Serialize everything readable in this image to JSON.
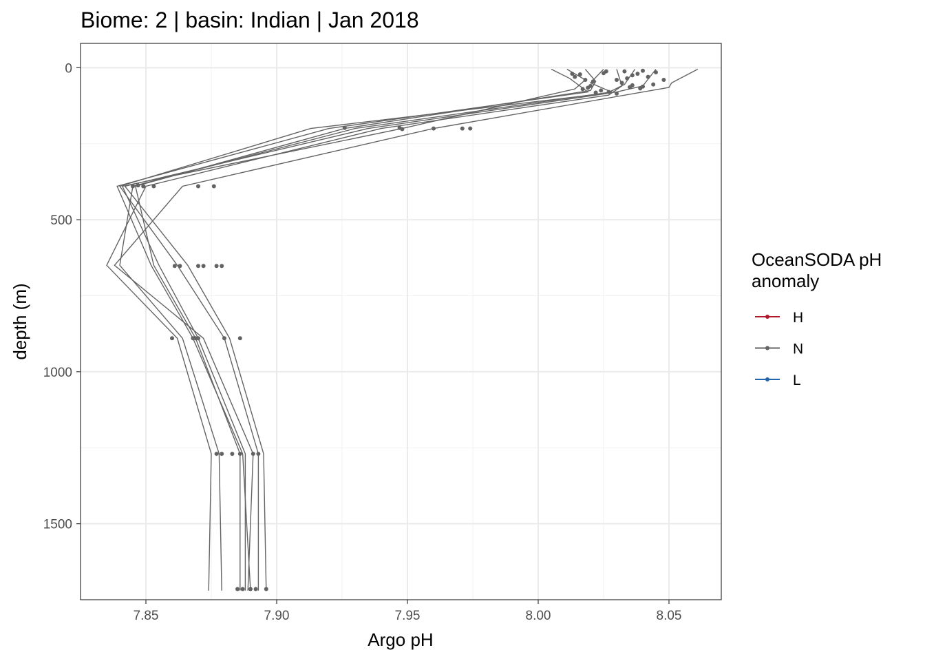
{
  "chart_data": {
    "type": "line",
    "title": "Biome: 2 | basin: Indian  | Jan 2018",
    "xlabel": "Argo pH",
    "ylabel": "depth (m)",
    "xlim": [
      7.825,
      8.07
    ],
    "ylim": [
      1750,
      -80
    ],
    "y_reversed": true,
    "xticks": [
      7.85,
      7.9,
      7.95,
      8.0,
      8.05
    ],
    "xtick_labels": [
      "7.85",
      "7.90",
      "7.95",
      "8.00",
      "8.05"
    ],
    "yticks": [
      0,
      500,
      1000,
      1500
    ],
    "ytick_labels": [
      "0",
      "500",
      "1000",
      "1500"
    ],
    "grid": true,
    "legend": {
      "title": "OceanSODA pH anomaly",
      "title_lines": [
        "OceanSODA pH",
        "anomaly"
      ],
      "placement": "right",
      "entries": [
        {
          "label": "H",
          "color": "#b2182b"
        },
        {
          "label": "N",
          "color": "#636363"
        },
        {
          "label": "L",
          "color": "#2166ac"
        }
      ]
    },
    "series": [
      {
        "group": "N",
        "points": [
          [
            8.061,
            5
          ],
          [
            8.051,
            50
          ],
          [
            8.05,
            65
          ],
          [
            7.96,
            200
          ],
          [
            7.864,
            390
          ],
          [
            7.838,
            650
          ],
          [
            7.872,
            890
          ],
          [
            7.891,
            1270
          ],
          [
            7.889,
            1720
          ]
        ]
      },
      {
        "group": "N",
        "points": [
          [
            8.045,
            5
          ],
          [
            8.04,
            60
          ],
          [
            8.03,
            80
          ],
          [
            7.913,
            200
          ],
          [
            7.84,
            390
          ],
          [
            7.862,
            650
          ],
          [
            7.88,
            890
          ],
          [
            7.893,
            1270
          ],
          [
            7.893,
            1720
          ]
        ]
      },
      {
        "group": "N",
        "points": [
          [
            8.037,
            5
          ],
          [
            8.033,
            55
          ],
          [
            8.026,
            85
          ],
          [
            7.935,
            200
          ],
          [
            7.842,
            390
          ],
          [
            7.866,
            650
          ],
          [
            7.882,
            890
          ],
          [
            7.895,
            1270
          ],
          [
            7.896,
            1720
          ]
        ]
      },
      {
        "group": "N",
        "points": [
          [
            8.03,
            5
          ],
          [
            8.032,
            60
          ],
          [
            8.027,
            90
          ],
          [
            7.94,
            200
          ],
          [
            7.85,
            390
          ],
          [
            7.835,
            650
          ],
          [
            7.862,
            890
          ],
          [
            7.875,
            1270
          ],
          [
            7.874,
            1720
          ]
        ]
      },
      {
        "group": "N",
        "points": [
          [
            8.025,
            5
          ],
          [
            8.02,
            50
          ],
          [
            8.028,
            80
          ],
          [
            7.93,
            200
          ],
          [
            7.845,
            390
          ],
          [
            7.84,
            650
          ],
          [
            7.864,
            890
          ],
          [
            7.878,
            1270
          ],
          [
            7.879,
            1720
          ]
        ]
      },
      {
        "group": "N",
        "points": [
          [
            8.018,
            5
          ],
          [
            8.022,
            45
          ],
          [
            8.02,
            75
          ],
          [
            7.926,
            200
          ],
          [
            7.846,
            390
          ],
          [
            7.853,
            650
          ],
          [
            7.869,
            890
          ],
          [
            7.886,
            1270
          ],
          [
            7.886,
            1720
          ]
        ]
      },
      {
        "group": "N",
        "points": [
          [
            8.011,
            5
          ],
          [
            8.018,
            40
          ],
          [
            8.014,
            70
          ],
          [
            7.948,
            200
          ],
          [
            7.841,
            390
          ],
          [
            7.855,
            650
          ],
          [
            7.87,
            890
          ],
          [
            7.888,
            1270
          ],
          [
            7.888,
            1720
          ]
        ]
      },
      {
        "group": "N",
        "points": [
          [
            8.005,
            5
          ],
          [
            8.012,
            35
          ],
          [
            8.019,
            80
          ],
          [
            7.92,
            200
          ],
          [
            7.839,
            390
          ],
          [
            7.852,
            650
          ],
          [
            7.868,
            890
          ],
          [
            7.887,
            1270
          ],
          [
            7.89,
            1720
          ]
        ]
      }
    ],
    "points": [
      {
        "group": "N",
        "x": 8.045,
        "y": 15
      },
      {
        "group": "N",
        "x": 8.04,
        "y": 10
      },
      {
        "group": "N",
        "x": 8.038,
        "y": 20
      },
      {
        "group": "N",
        "x": 8.042,
        "y": 30
      },
      {
        "group": "N",
        "x": 8.036,
        "y": 25
      },
      {
        "group": "N",
        "x": 8.033,
        "y": 12
      },
      {
        "group": "N",
        "x": 8.048,
        "y": 40
      },
      {
        "group": "N",
        "x": 8.044,
        "y": 55
      },
      {
        "group": "N",
        "x": 8.04,
        "y": 62
      },
      {
        "group": "N",
        "x": 8.036,
        "y": 58
      },
      {
        "group": "N",
        "x": 8.032,
        "y": 50
      },
      {
        "group": "N",
        "x": 8.035,
        "y": 64
      },
      {
        "group": "N",
        "x": 8.039,
        "y": 68
      },
      {
        "group": "N",
        "x": 8.03,
        "y": 40
      },
      {
        "group": "N",
        "x": 8.034,
        "y": 35
      },
      {
        "group": "N",
        "x": 8.026,
        "y": 12
      },
      {
        "group": "N",
        "x": 8.025,
        "y": 18
      },
      {
        "group": "N",
        "x": 8.018,
        "y": 40
      },
      {
        "group": "N",
        "x": 8.021,
        "y": 45
      },
      {
        "group": "N",
        "x": 8.016,
        "y": 22
      },
      {
        "group": "N",
        "x": 8.014,
        "y": 30
      },
      {
        "group": "N",
        "x": 8.013,
        "y": 20
      },
      {
        "group": "N",
        "x": 8.02,
        "y": 60
      },
      {
        "group": "N",
        "x": 8.017,
        "y": 70
      },
      {
        "group": "N",
        "x": 8.024,
        "y": 75
      },
      {
        "group": "N",
        "x": 8.027,
        "y": 80
      },
      {
        "group": "N",
        "x": 8.03,
        "y": 85
      },
      {
        "group": "N",
        "x": 8.022,
        "y": 82
      },
      {
        "group": "N",
        "x": 8.019,
        "y": 66
      },
      {
        "group": "N",
        "x": 7.926,
        "y": 198
      },
      {
        "group": "N",
        "x": 7.947,
        "y": 198
      },
      {
        "group": "N",
        "x": 7.948,
        "y": 202
      },
      {
        "group": "N",
        "x": 7.96,
        "y": 200
      },
      {
        "group": "N",
        "x": 7.971,
        "y": 200
      },
      {
        "group": "N",
        "x": 7.974,
        "y": 200
      },
      {
        "group": "N",
        "x": 7.845,
        "y": 390
      },
      {
        "group": "N",
        "x": 7.847,
        "y": 387
      },
      {
        "group": "N",
        "x": 7.849,
        "y": 390
      },
      {
        "group": "N",
        "x": 7.853,
        "y": 390
      },
      {
        "group": "N",
        "x": 7.87,
        "y": 390
      },
      {
        "group": "N",
        "x": 7.876,
        "y": 390
      },
      {
        "group": "N",
        "x": 7.861,
        "y": 652
      },
      {
        "group": "N",
        "x": 7.863,
        "y": 652
      },
      {
        "group": "N",
        "x": 7.87,
        "y": 652
      },
      {
        "group": "N",
        "x": 7.872,
        "y": 652
      },
      {
        "group": "N",
        "x": 7.877,
        "y": 652
      },
      {
        "group": "N",
        "x": 7.879,
        "y": 652
      },
      {
        "group": "N",
        "x": 7.86,
        "y": 890
      },
      {
        "group": "N",
        "x": 7.868,
        "y": 890
      },
      {
        "group": "N",
        "x": 7.869,
        "y": 890
      },
      {
        "group": "N",
        "x": 7.87,
        "y": 890
      },
      {
        "group": "N",
        "x": 7.88,
        "y": 890
      },
      {
        "group": "N",
        "x": 7.886,
        "y": 890
      },
      {
        "group": "N",
        "x": 7.877,
        "y": 1270
      },
      {
        "group": "N",
        "x": 7.879,
        "y": 1270
      },
      {
        "group": "N",
        "x": 7.883,
        "y": 1270
      },
      {
        "group": "N",
        "x": 7.886,
        "y": 1270
      },
      {
        "group": "N",
        "x": 7.891,
        "y": 1270
      },
      {
        "group": "N",
        "x": 7.893,
        "y": 1270
      },
      {
        "group": "N",
        "x": 7.885,
        "y": 1715
      },
      {
        "group": "N",
        "x": 7.887,
        "y": 1715
      },
      {
        "group": "N",
        "x": 7.89,
        "y": 1715
      },
      {
        "group": "N",
        "x": 7.892,
        "y": 1715
      },
      {
        "group": "N",
        "x": 7.896,
        "y": 1715
      }
    ],
    "colors": {
      "line": "#636363",
      "panel_border": "#333333",
      "grid": "#ebebeb"
    }
  }
}
